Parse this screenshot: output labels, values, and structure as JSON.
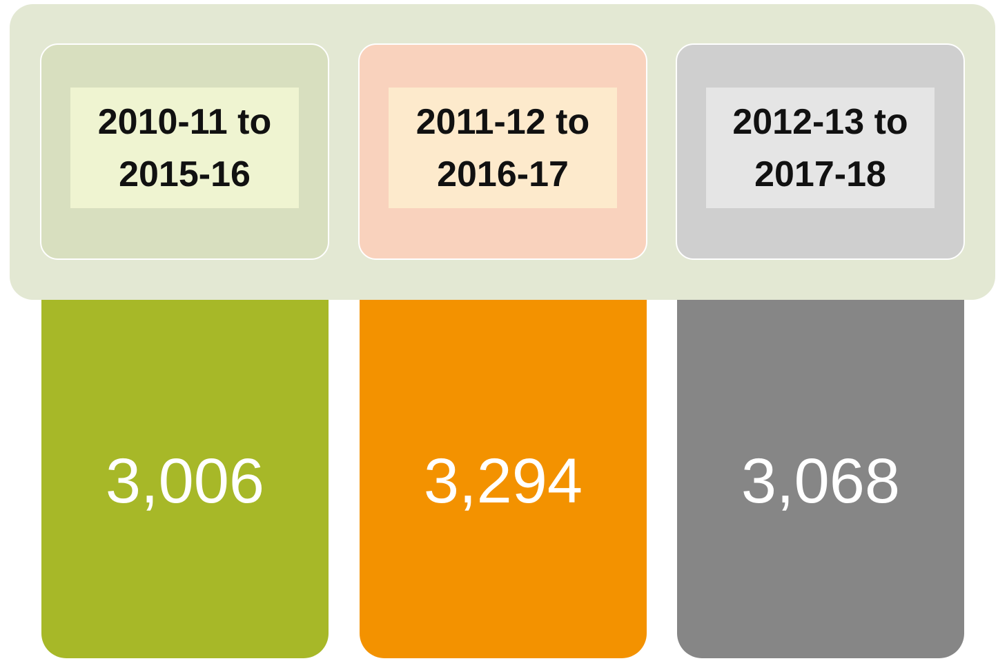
{
  "panels": [
    {
      "label": [
        "2010-11 to",
        "2015-16"
      ],
      "value": "3,006",
      "card_color": "#d8dfbf",
      "label_color": "#eff4d1",
      "value_color": "#a7b828"
    },
    {
      "label": [
        "2011-12 to",
        "2016-17"
      ],
      "value": "3,294",
      "card_color": "#f9d2bd",
      "label_color": "#fdeacc",
      "value_color": "#f39200"
    },
    {
      "label": [
        "2012-13 to",
        "2017-18"
      ],
      "value": "3,068",
      "card_color": "#cfcfcf",
      "label_color": "#e5e5e5",
      "value_color": "#868686"
    }
  ]
}
